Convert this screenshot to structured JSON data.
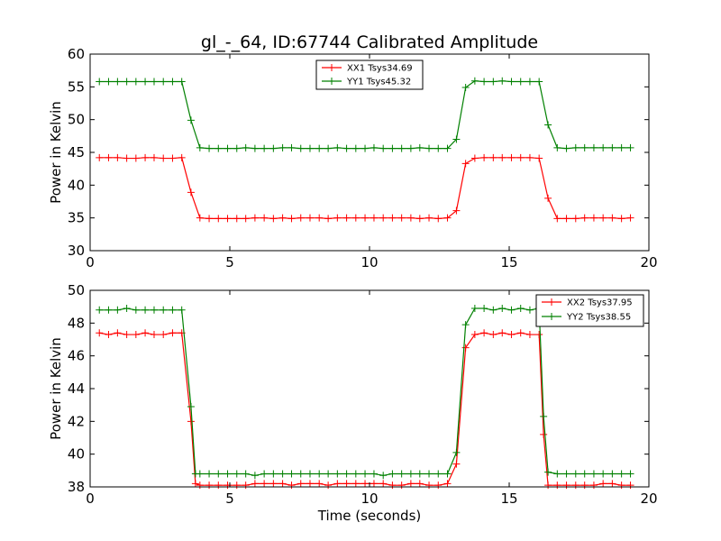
{
  "figure": {
    "title": "gl_-_64, ID:67744 Calibrated Amplitude",
    "xlabel": "Time (seconds)"
  },
  "chart_data": [
    {
      "type": "line",
      "title": "gl_-_64, ID:67744 Calibrated Amplitude",
      "xlabel": "",
      "ylabel": "Power in Kelvin",
      "xlim": [
        0,
        20
      ],
      "ylim": [
        30,
        60
      ],
      "xticks": [
        "0",
        "5",
        "10",
        "15",
        "20"
      ],
      "yticks": [
        "30",
        "35",
        "40",
        "45",
        "50",
        "55",
        "60"
      ],
      "grid": false,
      "legend_position": "top-center",
      "x": [
        0.33,
        0.66,
        0.98,
        1.31,
        1.64,
        1.97,
        2.29,
        2.62,
        2.95,
        3.28,
        3.61,
        3.93,
        4.26,
        4.59,
        4.92,
        5.25,
        5.57,
        5.9,
        6.23,
        6.56,
        6.89,
        7.21,
        7.54,
        7.87,
        8.2,
        8.52,
        8.85,
        9.18,
        9.51,
        9.84,
        10.16,
        10.49,
        10.82,
        11.15,
        11.48,
        11.8,
        12.13,
        12.46,
        12.79,
        13.11,
        13.44,
        13.77,
        14.1,
        14.43,
        14.75,
        15.08,
        15.41,
        15.74,
        16.07,
        16.39,
        16.72,
        17.05,
        17.38,
        17.7,
        18.03,
        18.36,
        18.69,
        19.02,
        19.34
      ],
      "series": [
        {
          "name": "XX1 Tsys34.69",
          "color": "#ff0000",
          "values": [
            44.2,
            44.2,
            44.2,
            44.1,
            44.1,
            44.2,
            44.2,
            44.1,
            44.1,
            44.2,
            38.9,
            35.0,
            34.9,
            34.9,
            34.9,
            34.9,
            34.9,
            35.0,
            35.0,
            34.9,
            35.0,
            34.9,
            35.0,
            35.0,
            35.0,
            34.9,
            35.0,
            35.0,
            35.0,
            35.0,
            35.0,
            35.0,
            35.0,
            35.0,
            35.0,
            34.9,
            35.0,
            34.9,
            35.0,
            36.1,
            43.3,
            44.1,
            44.2,
            44.2,
            44.2,
            44.2,
            44.2,
            44.2,
            44.1,
            38.0,
            34.9,
            34.9,
            34.9,
            35.0,
            35.0,
            35.0,
            35.0,
            34.9,
            35.0
          ]
        },
        {
          "name": "YY1 Tsys45.32",
          "color": "#008000",
          "values": [
            55.8,
            55.8,
            55.8,
            55.8,
            55.8,
            55.8,
            55.8,
            55.8,
            55.8,
            55.8,
            49.9,
            45.7,
            45.6,
            45.6,
            45.6,
            45.6,
            45.7,
            45.6,
            45.6,
            45.6,
            45.7,
            45.7,
            45.6,
            45.6,
            45.6,
            45.6,
            45.7,
            45.6,
            45.6,
            45.6,
            45.7,
            45.6,
            45.6,
            45.6,
            45.6,
            45.7,
            45.6,
            45.6,
            45.6,
            47.0,
            54.9,
            55.9,
            55.8,
            55.8,
            55.9,
            55.8,
            55.8,
            55.8,
            55.8,
            49.2,
            45.7,
            45.6,
            45.7,
            45.7,
            45.7,
            45.7,
            45.7,
            45.7,
            45.7
          ]
        }
      ]
    },
    {
      "type": "line",
      "title": "",
      "xlabel": "Time (seconds)",
      "ylabel": "Power in Kelvin",
      "xlim": [
        0,
        20
      ],
      "ylim": [
        38,
        50
      ],
      "xticks": [
        "0",
        "5",
        "10",
        "15",
        "20"
      ],
      "yticks": [
        "38",
        "40",
        "42",
        "44",
        "46",
        "48",
        "50"
      ],
      "grid": false,
      "legend_position": "top-right",
      "x": [
        0.33,
        0.66,
        0.98,
        1.31,
        1.64,
        1.97,
        2.29,
        2.62,
        2.95,
        3.28,
        3.61,
        3.77,
        3.93,
        4.26,
        4.59,
        4.92,
        5.25,
        5.57,
        5.9,
        6.23,
        6.56,
        6.89,
        7.21,
        7.54,
        7.87,
        8.2,
        8.52,
        8.85,
        9.18,
        9.51,
        9.84,
        10.16,
        10.49,
        10.82,
        11.15,
        11.48,
        11.8,
        12.13,
        12.46,
        12.79,
        13.11,
        13.44,
        13.77,
        14.1,
        14.43,
        14.75,
        15.08,
        15.41,
        15.74,
        16.07,
        16.23,
        16.39,
        16.72,
        17.05,
        17.38,
        17.7,
        18.03,
        18.36,
        18.69,
        19.02,
        19.34
      ],
      "series": [
        {
          "name": "XX2 Tsys37.95",
          "color": "#ff0000",
          "values": [
            47.4,
            47.3,
            47.4,
            47.3,
            47.3,
            47.4,
            47.3,
            47.3,
            47.4,
            47.4,
            42.0,
            38.2,
            38.1,
            38.1,
            38.1,
            38.1,
            38.1,
            38.1,
            38.2,
            38.2,
            38.2,
            38.2,
            38.1,
            38.2,
            38.2,
            38.2,
            38.1,
            38.2,
            38.2,
            38.2,
            38.2,
            38.2,
            38.2,
            38.1,
            38.1,
            38.2,
            38.2,
            38.1,
            38.1,
            38.2,
            39.4,
            46.5,
            47.3,
            47.4,
            47.3,
            47.4,
            47.3,
            47.4,
            47.3,
            47.3,
            41.2,
            38.1,
            38.1,
            38.1,
            38.1,
            38.1,
            38.1,
            38.2,
            38.2,
            38.1,
            38.1
          ]
        },
        {
          "name": "YY2 Tsys38.55",
          "color": "#008000",
          "values": [
            48.8,
            48.8,
            48.8,
            48.9,
            48.8,
            48.8,
            48.8,
            48.8,
            48.8,
            48.8,
            42.9,
            38.8,
            38.8,
            38.8,
            38.8,
            38.8,
            38.8,
            38.8,
            38.7,
            38.8,
            38.8,
            38.8,
            38.8,
            38.8,
            38.8,
            38.8,
            38.8,
            38.8,
            38.8,
            38.8,
            38.8,
            38.8,
            38.7,
            38.8,
            38.8,
            38.8,
            38.8,
            38.8,
            38.8,
            38.8,
            40.1,
            47.9,
            48.9,
            48.9,
            48.8,
            48.9,
            48.8,
            48.9,
            48.8,
            48.9,
            42.3,
            38.9,
            38.8,
            38.8,
            38.8,
            38.8,
            38.8,
            38.8,
            38.8,
            38.8,
            38.8
          ]
        }
      ]
    }
  ]
}
